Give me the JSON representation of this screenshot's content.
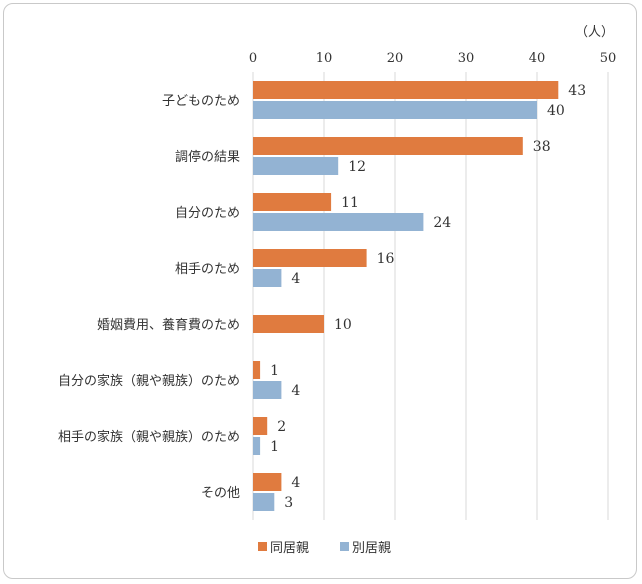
{
  "chart_data": {
    "type": "bar",
    "orientation": "horizontal",
    "unit_label": "（人）",
    "categories": [
      "子どものため",
      "調停の結果",
      "自分のため",
      "相手のため",
      "婚姻費用、養育費のため",
      "自分の家族（親や親族）のため",
      "相手の家族（親や親族）のため",
      "その他"
    ],
    "series": [
      {
        "name": "同居親",
        "color": "#e07b3f",
        "values": [
          43,
          38,
          11,
          16,
          10,
          1,
          2,
          4
        ]
      },
      {
        "name": "別居親",
        "color": "#93b3d3",
        "values": [
          40,
          12,
          24,
          4,
          null,
          4,
          1,
          3
        ]
      }
    ],
    "xlim": [
      0,
      50
    ],
    "xticks": [
      0,
      10,
      20,
      30,
      40,
      50
    ],
    "x_axis_position": "top",
    "grid": true,
    "legend": "bottom-center"
  }
}
